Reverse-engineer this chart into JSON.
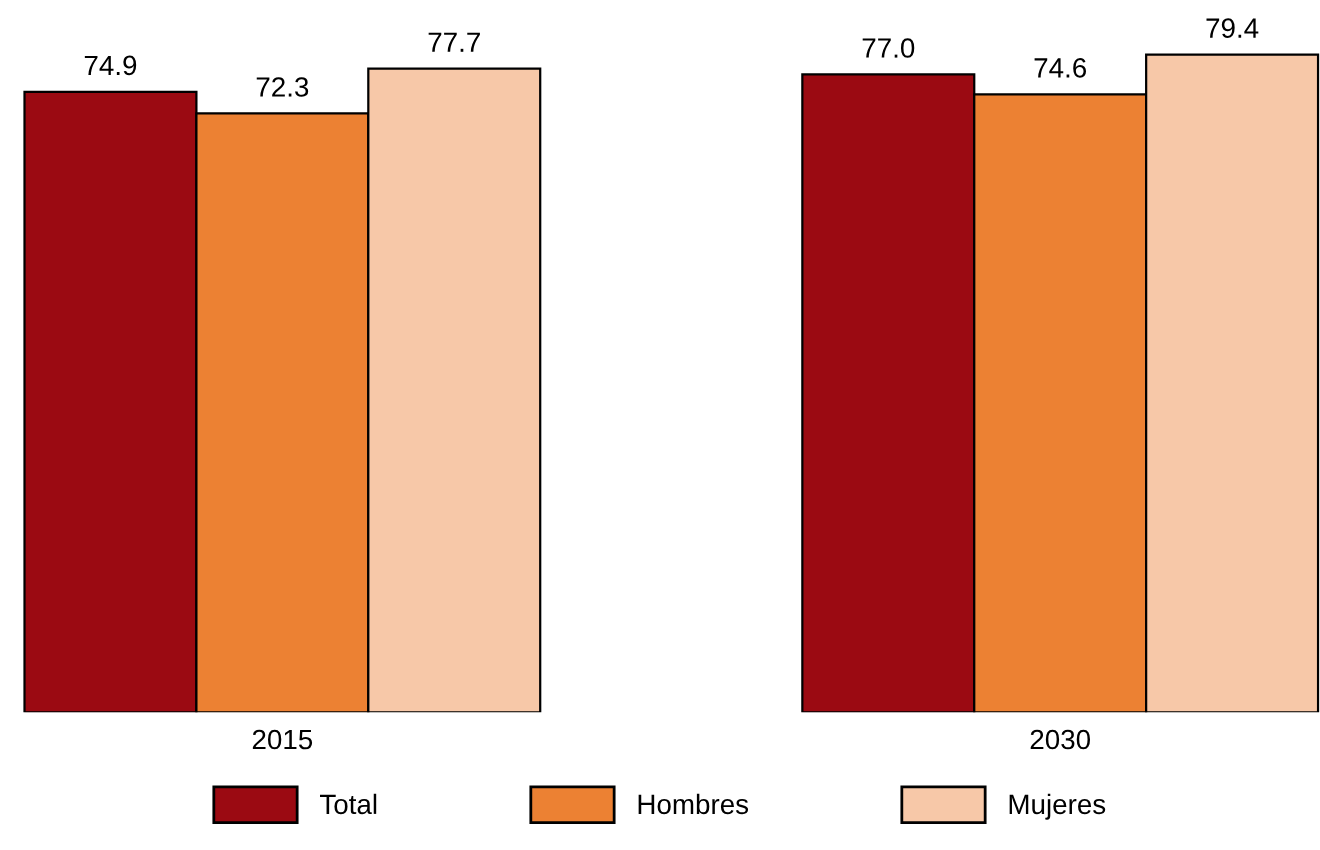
{
  "chart_data": {
    "type": "bar",
    "categories": [
      "2015",
      "2030"
    ],
    "series": [
      {
        "name": "Total",
        "color": "#9b0a12",
        "values": [
          74.9,
          77.0
        ],
        "value_labels": [
          "74.9",
          "77.0"
        ]
      },
      {
        "name": "Hombres",
        "color": "#ec8133",
        "values": [
          72.3,
          74.6
        ],
        "value_labels": [
          "72.3",
          "74.6"
        ]
      },
      {
        "name": "Mujeres",
        "color": "#f7c8a8",
        "values": [
          77.7,
          79.4
        ],
        "value_labels": [
          "77.7",
          "79.4"
        ]
      }
    ],
    "tick_labels": "x",
    "legend": "bottom",
    "grid": false
  }
}
